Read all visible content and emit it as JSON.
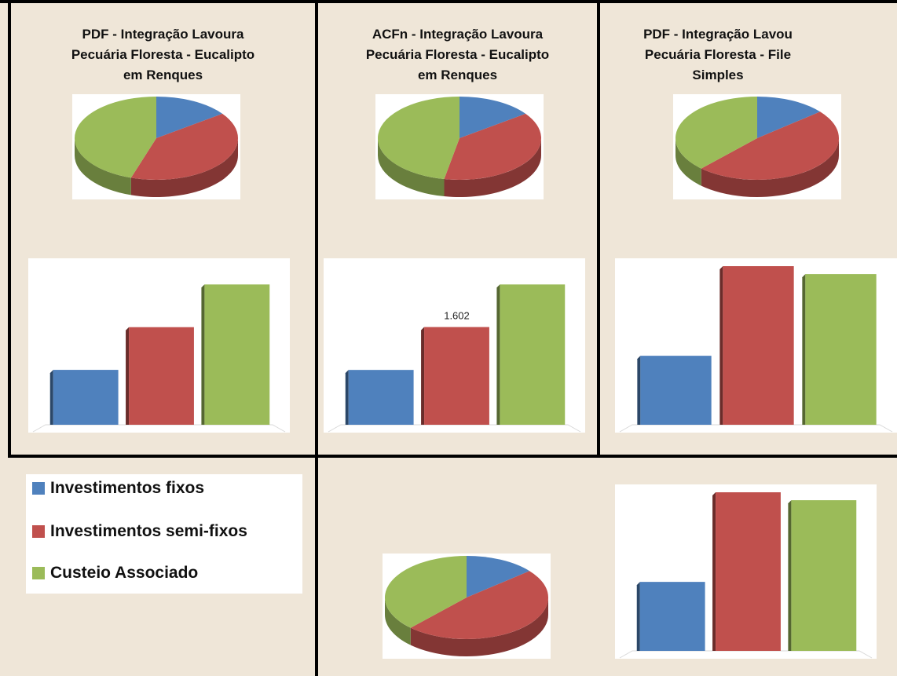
{
  "colors": {
    "blue": "#4f81bd",
    "red": "#c0504d",
    "green": "#9bbb59",
    "background": "#efe6d8"
  },
  "panels": [
    {
      "title_lines": [
        "PDF - Integração Lavoura",
        "Pecuária Floresta - Eucalipto",
        "em Renques"
      ]
    },
    {
      "title_lines": [
        "ACFn - Integração Lavoura",
        "Pecuária Floresta - Eucalipto",
        "em Renques"
      ]
    },
    {
      "title_lines": [
        "PDF - Integração Lavou",
        "Pecuária Floresta - File",
        "Simples"
      ]
    }
  ],
  "legend": [
    {
      "label": "Investimentos fixos",
      "color": "#4f81bd"
    },
    {
      "label": "Investimentos semi-fixos",
      "color": "#c0504d"
    },
    {
      "label": "Custeio Associado",
      "color": "#9bbb59"
    }
  ],
  "chart_data": [
    {
      "type": "pie",
      "title": "PDF - Integração Lavoura Pecuária Floresta - Eucalipto em Renques",
      "categories": [
        "Investimentos fixos",
        "Investimentos semi-fixos",
        "Custeio Associado"
      ],
      "values": [
        15,
        40,
        45
      ]
    },
    {
      "type": "pie",
      "title": "ACFn - Integração Lavoura Pecuária Floresta - Eucalipto em Renques",
      "categories": [
        "Investimentos fixos",
        "Investimentos semi-fixos",
        "Custeio Associado"
      ],
      "values": [
        15,
        38,
        47
      ]
    },
    {
      "type": "pie",
      "title": "PDF - Integração Lavou Pecuária Floresta - File Simples",
      "categories": [
        "Investimentos fixos",
        "Investimentos semi-fixos",
        "Custeio Associado"
      ],
      "values": [
        14,
        48,
        38
      ]
    },
    {
      "type": "pie",
      "title": "",
      "categories": [
        "Investimentos fixos",
        "Investimentos semi-fixos",
        "Custeio Associado"
      ],
      "values": [
        14,
        48,
        38
      ]
    },
    {
      "type": "bar",
      "categories": [
        "Investimentos fixos",
        "Investimentos semi-fixos",
        "Custeio Associado"
      ],
      "values": [
        0.9,
        1.6,
        2.3
      ],
      "ylim": [
        0,
        2.6
      ]
    },
    {
      "type": "bar",
      "categories": [
        "Investimentos fixos",
        "Investimentos semi-fixos",
        "Custeio Associado"
      ],
      "values": [
        0.899,
        1.602,
        2.3
      ],
      "data_labels": [
        "",
        "1.602",
        ""
      ],
      "ylim": [
        0,
        2.6
      ]
    },
    {
      "type": "bar",
      "categories": [
        "Investimentos fixos",
        "Investimentos semi-fixos",
        "Custeio Associado"
      ],
      "values": [
        0.87,
        2.0,
        1.9
      ],
      "ylim": [
        0,
        2.0
      ]
    },
    {
      "type": "bar",
      "categories": [
        "Investimentos fixos",
        "Investimentos semi-fixos",
        "Custeio Associado"
      ],
      "values": [
        0.87,
        2.0,
        1.9
      ],
      "ylim": [
        0,
        2.0
      ]
    }
  ]
}
